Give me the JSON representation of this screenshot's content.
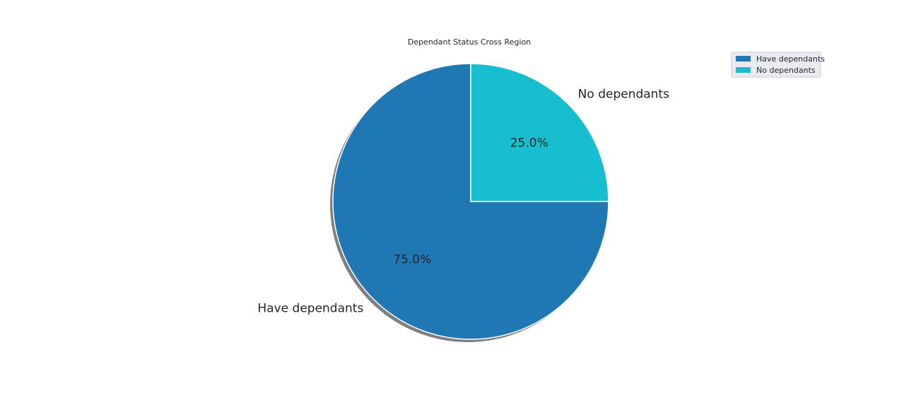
{
  "chart_data": {
    "type": "pie",
    "title": "Dependant Status Cross Region",
    "categories": [
      "Have dependants",
      "No dependants"
    ],
    "values": [
      75.0,
      25.0
    ],
    "percent_labels": [
      "75.0%",
      "25.0%"
    ],
    "colors": [
      "#1f77b4",
      "#17becf"
    ],
    "shadow": true,
    "start_angle_deg": 90,
    "legend": {
      "placement": "upper-right",
      "entries": [
        "Have dependants",
        "No dependants"
      ]
    }
  }
}
